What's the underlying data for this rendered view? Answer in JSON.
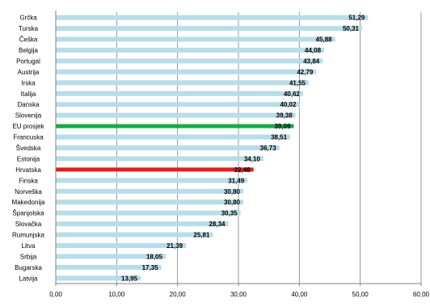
{
  "chart_data": {
    "type": "bar",
    "orientation": "horizontal",
    "title": "",
    "xlabel": "",
    "ylabel": "",
    "xlim": [
      0,
      60
    ],
    "x_ticks": [
      "0,00",
      "10,00",
      "20,00",
      "30,00",
      "40,00",
      "50,00",
      "60,00"
    ],
    "grid": true,
    "legend": "none",
    "categories": [
      "Grčka",
      "Turska",
      "Češka",
      "Belgija",
      "Portugal",
      "Austrija",
      "Irska",
      "Italija",
      "Danska",
      "Slovenija",
      "EU prosjek",
      "Francuska",
      "Švedska",
      "Estonija",
      "Hrvatska",
      "Finska",
      "Norveška",
      "Makedonija",
      "Španjolska",
      "Slovačka",
      "Rumunjska",
      "Litva",
      "Srbija",
      "Bugarska",
      "Latvija"
    ],
    "values": [
      51.29,
      50.31,
      45.88,
      44.08,
      43.84,
      42.79,
      41.55,
      40.62,
      40.02,
      39.38,
      39.09,
      38.51,
      36.73,
      34.1,
      32.48,
      31.49,
      30.8,
      30.8,
      30.35,
      28.34,
      25.81,
      21.39,
      18.05,
      17.35,
      13.95
    ],
    "value_labels": [
      "51,29",
      "50,31",
      "45,88",
      "44,08",
      "43,84",
      "42,79",
      "41,55",
      "40,62",
      "40,02",
      "39,38",
      "39,09",
      "38,51",
      "36,73",
      "34,10",
      "32,48",
      "31,49",
      "30,80",
      "30,80",
      "30,35",
      "28,34",
      "25,81",
      "21,39",
      "18,05",
      "17,35",
      "13,95"
    ],
    "colors": {
      "default_bar": "#b7dde8",
      "highlight_eu": "#1aa84a",
      "highlight_hr": "#e81c1c",
      "grid": "#808080",
      "axis": "#808080",
      "label": "#000000",
      "title": "#1f4e9c"
    },
    "highlights": {
      "EU prosjek": "highlight_eu",
      "Hrvatska": "highlight_hr"
    }
  }
}
